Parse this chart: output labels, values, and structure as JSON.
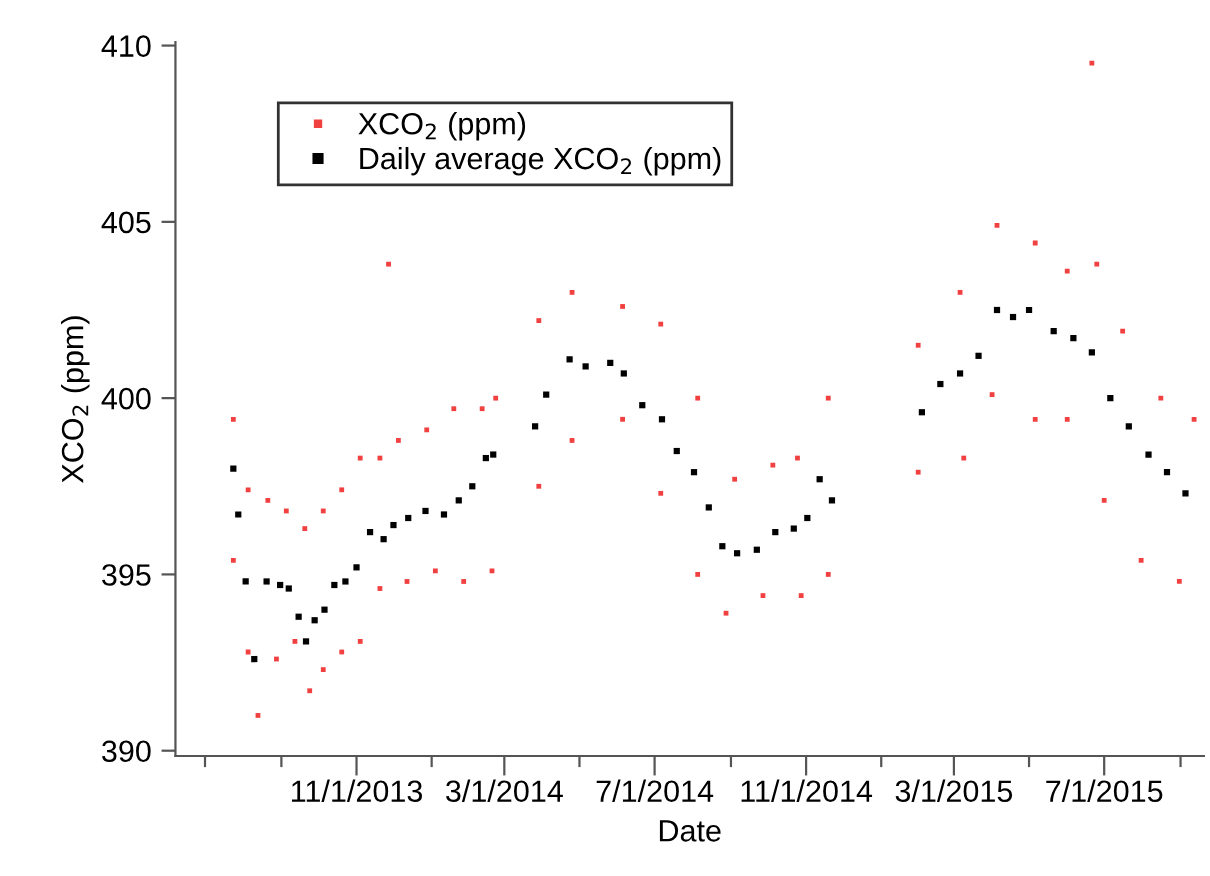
{
  "chart_data": {
    "type": "scatter",
    "xlabel": "Date",
    "ylabel": "XCO$_{2}$ (ppm)",
    "xlim": [
      "2013-06-07",
      "2015-09-20"
    ],
    "xticks": [
      {
        "value": "2013-07-01",
        "label": null
      },
      {
        "value": "2013-09-01",
        "label": null
      },
      {
        "value": "2013-11-01",
        "label": "11/1/2013"
      },
      {
        "value": "2014-01-01",
        "label": null
      },
      {
        "value": "2014-03-01",
        "label": "3/1/2014"
      },
      {
        "value": "2014-05-01",
        "label": null
      },
      {
        "value": "2014-07-01",
        "label": "7/1/2014"
      },
      {
        "value": "2014-09-01",
        "label": null
      },
      {
        "value": "2014-11-01",
        "label": "11/1/2014"
      },
      {
        "value": "2015-01-01",
        "label": null
      },
      {
        "value": "2015-03-01",
        "label": "3/1/2015"
      },
      {
        "value": "2015-05-01",
        "label": null
      },
      {
        "value": "2015-07-01",
        "label": "7/1/2015"
      },
      {
        "value": "2015-09-01",
        "label": null
      }
    ],
    "ylim": [
      389.85,
      410.1
    ],
    "yticks": [
      390,
      395,
      400,
      405,
      410
    ],
    "legend": "top left",
    "series": [
      {
        "name": "XCO$_{2}$ (ppm)",
        "color": "#f04040",
        "marker": "square",
        "x": [
          "2013-07-24",
          "2013-08-05",
          "2013-08-21",
          "2013-09-05",
          "2013-09-20",
          "2013-10-05",
          "2013-10-20",
          "2013-11-04",
          "2013-11-20",
          "2013-12-05",
          "2013-12-28",
          "2014-01-19",
          "2014-02-11",
          "2014-02-22",
          "2013-07-24",
          "2013-08-05",
          "2013-08-13",
          "2013-08-28",
          "2013-09-12",
          "2013-09-24",
          "2013-10-05",
          "2013-10-20",
          "2013-11-04",
          "2013-11-20",
          "2013-12-12",
          "2014-01-04",
          "2014-01-27",
          "2014-02-19",
          "2014-03-29",
          "2014-03-29",
          "2014-04-25",
          "2014-06-05",
          "2014-07-06",
          "2014-08-05",
          "2014-09-04",
          "2014-10-05",
          "2014-10-25",
          "2014-11-19",
          "2014-04-25",
          "2014-06-05",
          "2014-07-06",
          "2014-08-05",
          "2014-08-28",
          "2014-09-27",
          "2014-10-28",
          "2014-11-19",
          "2015-01-31",
          "2015-03-06",
          "2015-04-05",
          "2015-05-06",
          "2015-06-01",
          "2015-06-25",
          "2015-07-16",
          "2015-08-16",
          "2015-09-12",
          "2015-01-31",
          "2015-03-09",
          "2015-04-01",
          "2015-05-06",
          "2015-06-01",
          "2015-07-01",
          "2015-07-31",
          "2015-08-31",
          "2013-11-27",
          "2015-06-21"
        ],
        "values": [
          399.4,
          397.4,
          397.1,
          396.8,
          396.3,
          396.8,
          397.4,
          398.3,
          398.3,
          398.8,
          399.1,
          399.7,
          399.7,
          400.0,
          395.4,
          392.8,
          391.0,
          392.6,
          393.1,
          391.7,
          392.3,
          392.8,
          393.1,
          394.6,
          394.8,
          395.1,
          394.8,
          395.1,
          402.2,
          397.5,
          403.0,
          402.6,
          402.1,
          400.0,
          397.7,
          398.1,
          398.3,
          400.0,
          398.8,
          399.4,
          397.3,
          395.0,
          393.9,
          394.4,
          394.4,
          395.0,
          401.5,
          403.0,
          404.9,
          404.4,
          403.6,
          403.8,
          401.9,
          400.0,
          399.4,
          397.9,
          398.3,
          400.1,
          399.4,
          399.4,
          397.1,
          395.4,
          394.8,
          403.8,
          409.5
        ]
      },
      {
        "name": "Daily average XCO$_{2}$ (ppm)",
        "color": "#000000",
        "marker": "square",
        "x": [
          "2013-07-24",
          "2013-07-28",
          "2013-08-03",
          "2013-08-10",
          "2013-08-20",
          "2013-08-31",
          "2013-09-07",
          "2013-09-15",
          "2013-09-21",
          "2013-09-28",
          "2013-10-06",
          "2013-10-14",
          "2013-10-23",
          "2013-11-01",
          "2013-11-12",
          "2013-11-23",
          "2013-12-01",
          "2013-12-13",
          "2013-12-27",
          "2014-01-11",
          "2014-01-23",
          "2014-02-03",
          "2014-02-14",
          "2014-02-20",
          "2014-03-26",
          "2014-04-04",
          "2014-04-23",
          "2014-05-06",
          "2014-05-26",
          "2014-06-06",
          "2014-06-21",
          "2014-07-07",
          "2014-07-19",
          "2014-08-02",
          "2014-08-14",
          "2014-08-25",
          "2014-09-06",
          "2014-09-22",
          "2014-10-07",
          "2014-10-22",
          "2014-11-02",
          "2014-11-12",
          "2014-11-22",
          "2015-02-03",
          "2015-02-18",
          "2015-03-06",
          "2015-03-21",
          "2015-04-05",
          "2015-04-18",
          "2015-05-01",
          "2015-05-21",
          "2015-06-06",
          "2015-06-21",
          "2015-07-06",
          "2015-07-21",
          "2015-08-06",
          "2015-08-21",
          "2015-09-05"
        ],
        "values": [
          398.0,
          396.7,
          394.8,
          392.6,
          394.8,
          394.7,
          394.6,
          393.8,
          393.1,
          393.7,
          394.0,
          394.7,
          394.8,
          395.2,
          396.2,
          396.0,
          396.4,
          396.6,
          396.8,
          396.7,
          397.1,
          397.5,
          398.3,
          398.4,
          399.2,
          400.1,
          401.1,
          400.9,
          401.0,
          400.7,
          399.8,
          399.4,
          398.5,
          397.9,
          396.9,
          395.8,
          395.6,
          395.7,
          396.2,
          396.3,
          396.6,
          397.7,
          397.1,
          399.6,
          400.4,
          400.7,
          401.2,
          402.5,
          402.3,
          402.5,
          401.9,
          401.7,
          401.3,
          400.0,
          399.2,
          398.4,
          397.9,
          397.3
        ]
      }
    ]
  }
}
